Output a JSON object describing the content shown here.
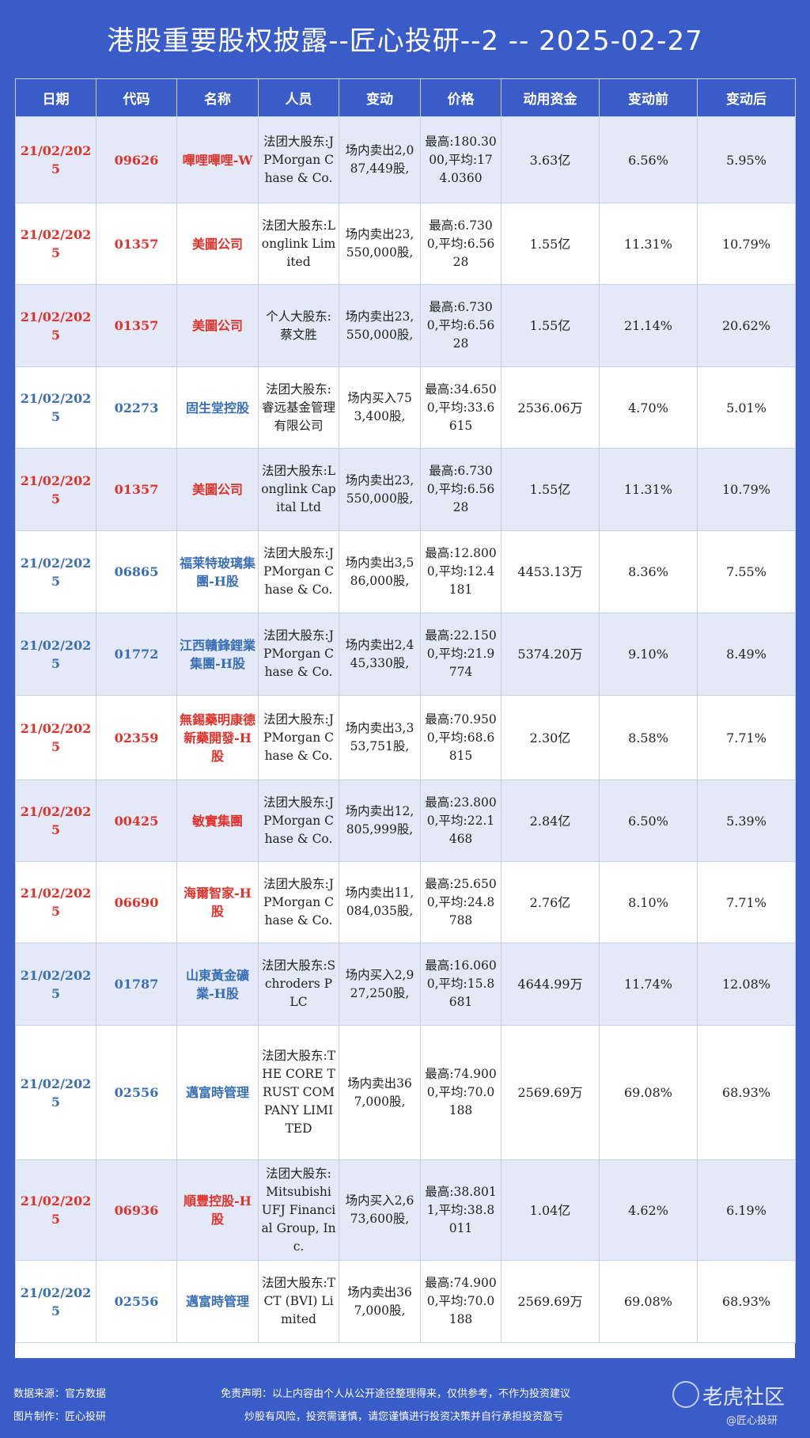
{
  "title": "港股重要股权披露--匠心投研--2 -- 2025-02-27",
  "headers": [
    "日期",
    "代码",
    "名称",
    "人员",
    "变动",
    "价格",
    "动用资金",
    "变动前",
    "变动后"
  ],
  "rows": [
    {
      "date": "21/02/2025",
      "code": "09626",
      "name": "嗶哩嗶哩-W",
      "person": "法团大股东:JPMorgan Chase & Co.",
      "change": "场内卖出2,087,449股,",
      "price": "最高:180.3000,平均:174.0360",
      "amount": "3.63亿",
      "before": "6.56%",
      "after": "5.95%",
      "color": "red"
    },
    {
      "date": "21/02/2025",
      "code": "01357",
      "name": "美圖公司",
      "person": "法团大股东:Longlink Limited",
      "change": "场内卖出23,550,000股,",
      "price": "最高:6.7300,平均:6.5628",
      "amount": "1.55亿",
      "before": "11.31%",
      "after": "10.79%",
      "color": "red"
    },
    {
      "date": "21/02/2025",
      "code": "01357",
      "name": "美圖公司",
      "person": "个人大股东:蔡文胜",
      "change": "场内卖出23,550,000股,",
      "price": "最高:6.7300,平均:6.5628",
      "amount": "1.55亿",
      "before": "21.14%",
      "after": "20.62%",
      "color": "red"
    },
    {
      "date": "21/02/2025",
      "code": "02273",
      "name": "固生堂控股",
      "person": "法团大股东:睿远基金管理有限公司",
      "change": "场内买入753,400股,",
      "price": "最高:34.6500,平均:33.6615",
      "amount": "2536.06万",
      "before": "4.70%",
      "after": "5.01%",
      "color": "blue"
    },
    {
      "date": "21/02/2025",
      "code": "01357",
      "name": "美圖公司",
      "person": "法团大股东:Longlink Capital Ltd",
      "change": "场内卖出23,550,000股,",
      "price": "最高:6.7300,平均:6.5628",
      "amount": "1.55亿",
      "before": "11.31%",
      "after": "10.79%",
      "color": "red"
    },
    {
      "date": "21/02/2025",
      "code": "06865",
      "name": "福莱特玻璃集團-H股",
      "person": "法团大股东:JPMorgan Chase & Co.",
      "change": "场内卖出3,586,000股,",
      "price": "最高:12.8000,平均:12.4181",
      "amount": "4453.13万",
      "before": "8.36%",
      "after": "7.55%",
      "color": "blue"
    },
    {
      "date": "21/02/2025",
      "code": "01772",
      "name": "江西贛鋒鋰業集團-H股",
      "person": "法团大股东:JPMorgan Chase & Co.",
      "change": "场内卖出2,445,330股,",
      "price": "最高:22.1500,平均:21.9774",
      "amount": "5374.20万",
      "before": "9.10%",
      "after": "8.49%",
      "color": "blue"
    },
    {
      "date": "21/02/2025",
      "code": "02359",
      "name": "無錫藥明康德新藥開發-H股",
      "person": "法团大股东:JPMorgan Chase & Co.",
      "change": "场内卖出3,353,751股,",
      "price": "最高:70.9500,平均:68.6815",
      "amount": "2.30亿",
      "before": "8.58%",
      "after": "7.71%",
      "color": "red"
    },
    {
      "date": "21/02/2025",
      "code": "00425",
      "name": "敏實集團",
      "person": "法团大股东:JPMorgan Chase & Co.",
      "change": "场内卖出12,805,999股,",
      "price": "最高:23.8000,平均:22.1468",
      "amount": "2.84亿",
      "before": "6.50%",
      "after": "5.39%",
      "color": "red"
    },
    {
      "date": "21/02/2025",
      "code": "06690",
      "name": "海爾智家-H股",
      "person": "法团大股东:JPMorgan Chase & Co.",
      "change": "场内卖出11,084,035股,",
      "price": "最高:25.6500,平均:24.8788",
      "amount": "2.76亿",
      "before": "8.10%",
      "after": "7.71%",
      "color": "red"
    },
    {
      "date": "21/02/2025",
      "code": "01787",
      "name": "山東黃金礦業-H股",
      "person": "法团大股东:Schroders PLC",
      "change": "场内买入2,927,250股,",
      "price": "最高:16.0600,平均:15.8681",
      "amount": "4644.99万",
      "before": "11.74%",
      "after": "12.08%",
      "color": "blue"
    },
    {
      "date": "21/02/2025",
      "code": "02556",
      "name": "邁富時管理",
      "person": "法团大股东:THE CORE TRUST COMPANY LIMITED",
      "change": "场内卖出367,000股,",
      "price": "最高:74.9000,平均:70.0188",
      "amount": "2569.69万",
      "before": "69.08%",
      "after": "68.93%",
      "color": "blue"
    },
    {
      "date": "21/02/2025",
      "code": "06936",
      "name": "順豐控股-H股",
      "person": "法团大股东:Mitsubishi UFJ Financial Group, Inc.",
      "change": "场内买入2,673,600股,",
      "price": "最高:38.8011,平均:38.8011",
      "amount": "1.04亿",
      "before": "4.62%",
      "after": "6.19%",
      "color": "red"
    },
    {
      "date": "21/02/2025",
      "code": "02556",
      "name": "邁富時管理",
      "person": "法团大股东:TCT (BVI) Limited",
      "change": "场内卖出367,000股,",
      "price": "最高:74.9000,平均:70.0188",
      "amount": "2569.69万",
      "before": "69.08%",
      "after": "68.93%",
      "color": "blue"
    }
  ],
  "footer": {
    "source": "数据来源：官方数据",
    "maker": "图片制作：匠心投研",
    "disclaimer": "免责声明：以上内容由个人从公开途径整理得来，仅供参考，不作为投资建议",
    "risk": "炒股有风险，投资需谨慎，请您谨慎进行投资决策并自行承担投资盈亏",
    "watermark": "老虎社区",
    "watermark_sub": "@匠心投研"
  }
}
